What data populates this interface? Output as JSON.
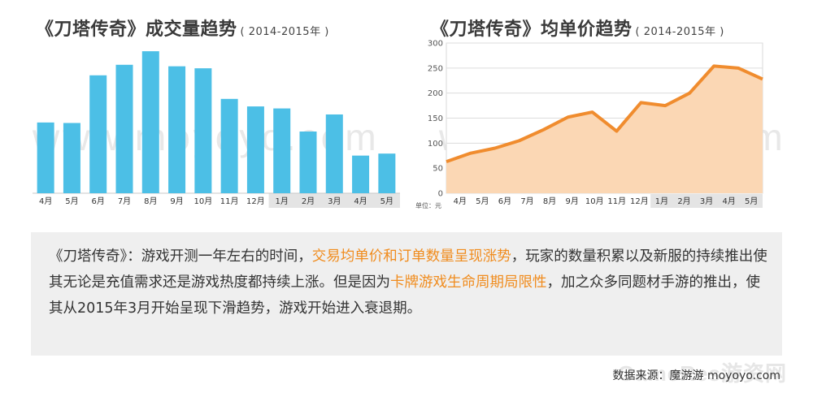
{
  "left_chart": {
    "title": "《刀塔传奇》成交量趋势",
    "subtitle": "( 2014-2015年 )"
  },
  "right_chart": {
    "title": "《刀塔传奇》均单价趋势",
    "subtitle": "( 2014-2015年 )",
    "unit_label": "单位：元"
  },
  "watermark": "www.moyoyo.com",
  "logo_watermark": "GameRes游资网",
  "colors": {
    "bar": "#4cbfe6",
    "line": "#f08c2e",
    "area": "#fbd7b4",
    "highlight_text": "#f08c1e",
    "axis_band": "#e4e4e4"
  },
  "chart_data": [
    {
      "type": "bar",
      "categories": [
        "4月",
        "5月",
        "6月",
        "7月",
        "8月",
        "9月",
        "10月",
        "11月",
        "12月",
        "1月",
        "2月",
        "3月",
        "4月",
        "5月"
      ],
      "values": [
        141,
        140,
        235,
        256,
        283,
        253,
        249,
        188,
        173,
        169,
        123,
        157,
        75,
        79
      ],
      "shaded_categories_from_index": 9,
      "ylim": [
        0,
        300
      ],
      "grid": false
    },
    {
      "type": "area",
      "categories": [
        "4月",
        "5月",
        "6月",
        "7月",
        "8月",
        "9月",
        "10月",
        "11月",
        "12月",
        "1月",
        "2月",
        "3月",
        "4月",
        "5月"
      ],
      "values": [
        63,
        80,
        90,
        105,
        127,
        152,
        162,
        124,
        181,
        175,
        200,
        254,
        250,
        228
      ],
      "shaded_categories_from_index": 9,
      "yticks": [
        0,
        50,
        100,
        150,
        200,
        250,
        300
      ],
      "ylim": [
        0,
        300
      ],
      "grid": true
    }
  ],
  "note": {
    "part1": "《刀塔传奇》：游戏开测一年左右的时间，",
    "highlight1": "交易均单价和订单数量呈现涨势",
    "part2": "，玩家的数量积累以及新服的持续推出使其无论是充值需求还是游戏热度都持续上涨。但是因为",
    "highlight2": "卡牌游戏生命周期局限性",
    "part3": "，加之众多同题材手游的推出，使其从2015年3月开始呈现下滑趋势，游戏开始进入衰退期。"
  },
  "source": "数据来源：魔游游 moyoyo.com"
}
